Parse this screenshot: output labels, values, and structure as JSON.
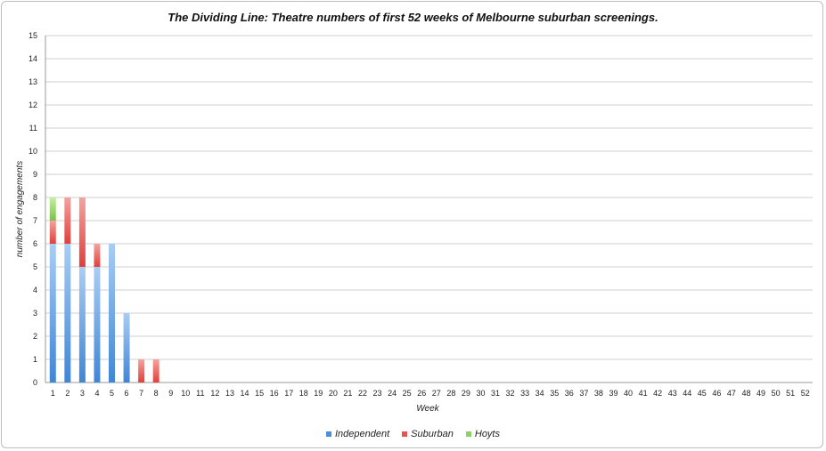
{
  "chart_data": {
    "type": "bar",
    "stacked": true,
    "title": "The Dividing Line: Theatre numbers of first 52 weeks of Melbourne suburban screenings.",
    "xlabel": "Week",
    "ylabel": "number of engagements",
    "ylim": [
      0,
      15
    ],
    "yticks": [
      0,
      1,
      2,
      3,
      4,
      5,
      6,
      7,
      8,
      9,
      10,
      11,
      12,
      13,
      14,
      15
    ],
    "categories": [
      "1",
      "2",
      "3",
      "4",
      "5",
      "6",
      "7",
      "8",
      "9",
      "10",
      "11",
      "12",
      "13",
      "14",
      "15",
      "16",
      "17",
      "18",
      "19",
      "20",
      "21",
      "22",
      "23",
      "24",
      "25",
      "26",
      "27",
      "28",
      "29",
      "30",
      "31",
      "32",
      "33",
      "34",
      "35",
      "36",
      "37",
      "38",
      "39",
      "40",
      "41",
      "42",
      "43",
      "44",
      "45",
      "46",
      "47",
      "48",
      "49",
      "50",
      "51",
      "52"
    ],
    "series": [
      {
        "name": "Independent",
        "color": "#4a90d9",
        "values": [
          6,
          6,
          5,
          5,
          6,
          3,
          0,
          0,
          0,
          0,
          0,
          0,
          0,
          0,
          0,
          0,
          0,
          0,
          0,
          0,
          0,
          0,
          0,
          0,
          0,
          0,
          0,
          0,
          0,
          0,
          0,
          0,
          0,
          0,
          0,
          0,
          0,
          0,
          0,
          0,
          0,
          0,
          0,
          0,
          0,
          0,
          0,
          0,
          0,
          0,
          0,
          0
        ]
      },
      {
        "name": "Suburban",
        "color": "#e8534f",
        "values": [
          1,
          2,
          3,
          1,
          0,
          0,
          1,
          1,
          0,
          0,
          0,
          0,
          0,
          0,
          0,
          0,
          0,
          0,
          0,
          0,
          0,
          0,
          0,
          0,
          0,
          0,
          0,
          0,
          0,
          0,
          0,
          0,
          0,
          0,
          0,
          0,
          0,
          0,
          0,
          0,
          0,
          0,
          0,
          0,
          0,
          0,
          0,
          0,
          0,
          0,
          0,
          0
        ]
      },
      {
        "name": "Hoyts",
        "color": "#8dd35f",
        "values": [
          1,
          0,
          0,
          0,
          0,
          0,
          0,
          0,
          0,
          0,
          0,
          0,
          0,
          0,
          0,
          0,
          0,
          0,
          0,
          0,
          0,
          0,
          0,
          0,
          0,
          0,
          0,
          0,
          0,
          0,
          0,
          0,
          0,
          0,
          0,
          0,
          0,
          0,
          0,
          0,
          0,
          0,
          0,
          0,
          0,
          0,
          0,
          0,
          0,
          0,
          0,
          0
        ]
      }
    ],
    "grid": true,
    "legend_position": "bottom"
  }
}
